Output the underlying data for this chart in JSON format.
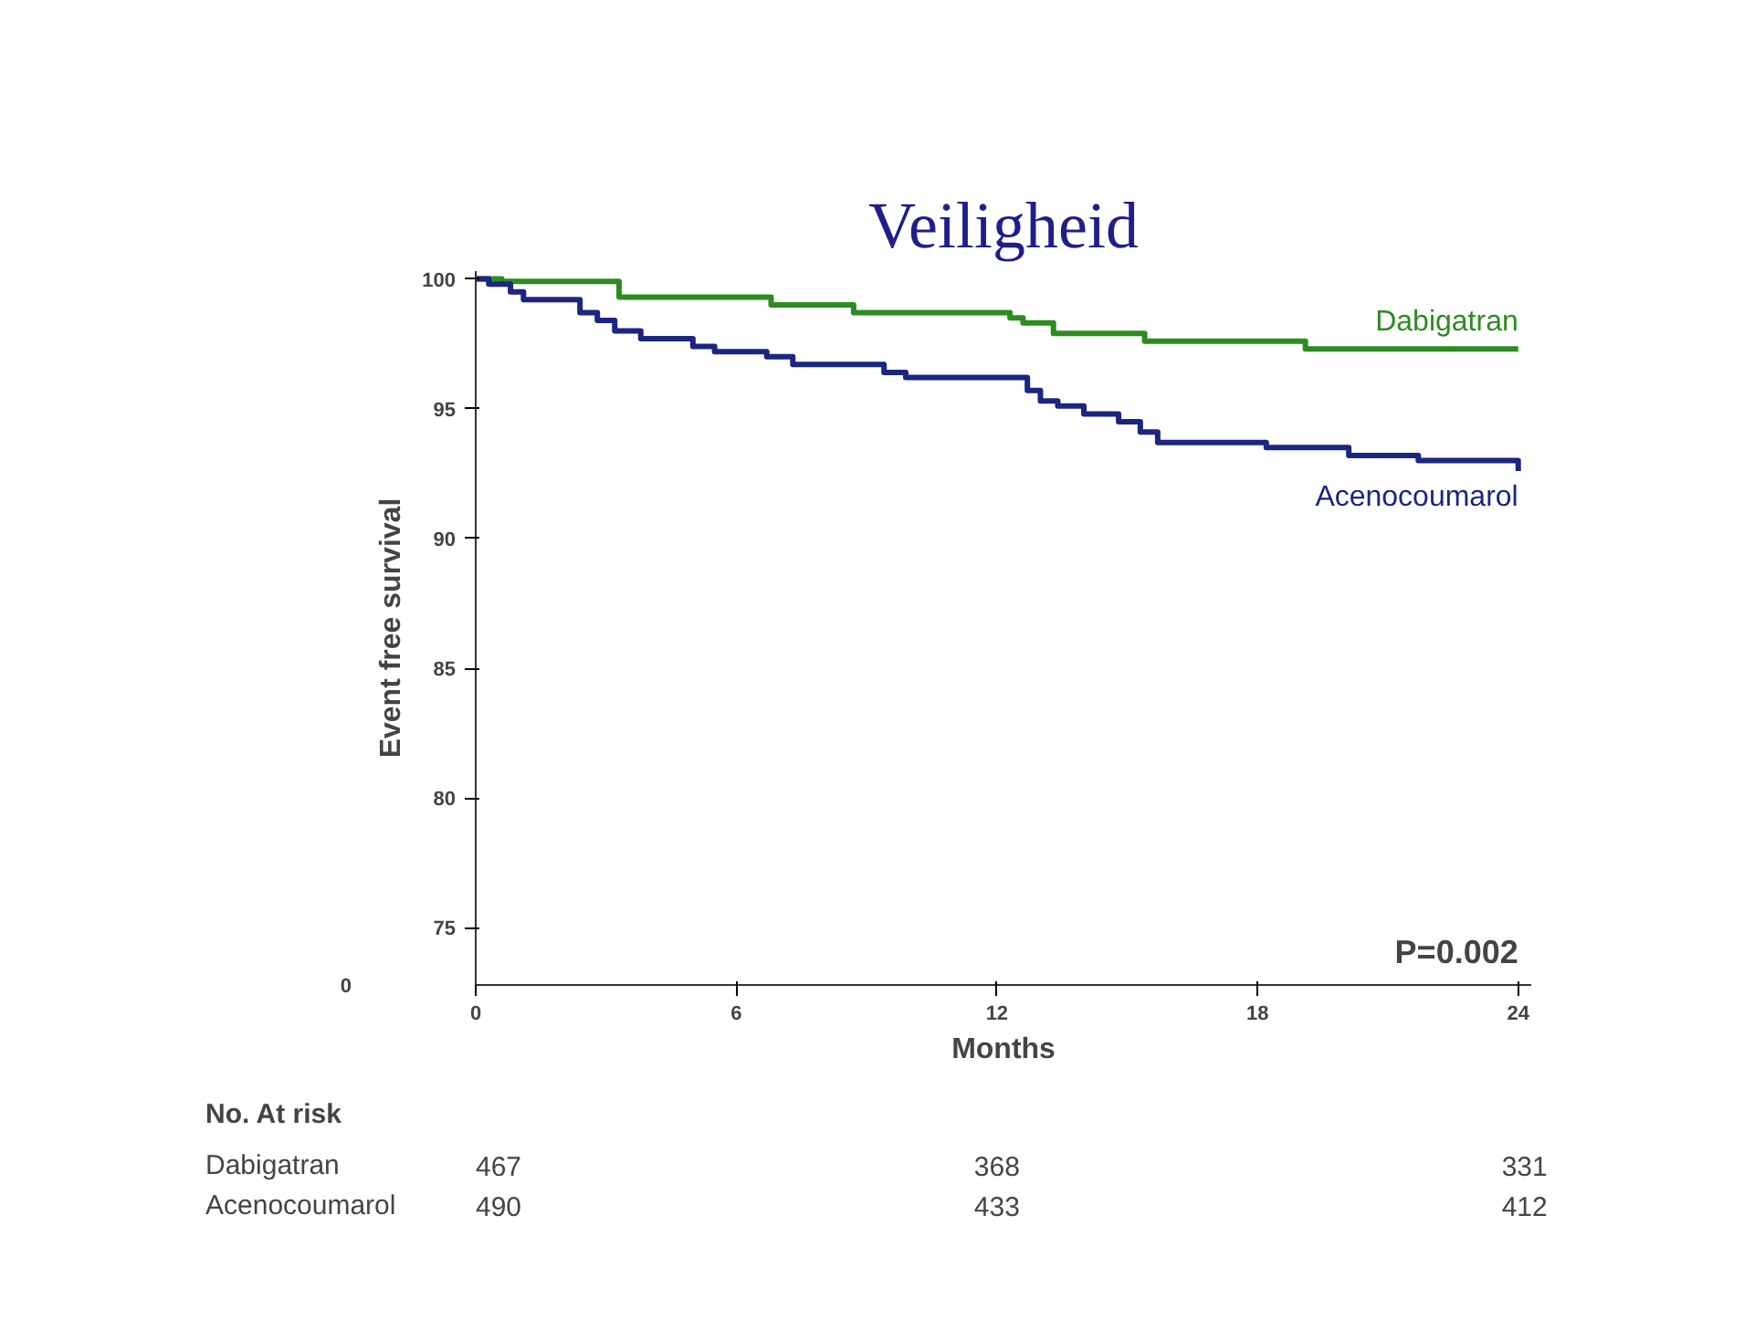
{
  "chart_data": {
    "type": "step",
    "title": "Veiligheid",
    "xlabel": "Months",
    "ylabel": "Event free survival",
    "xlim": [
      0,
      24.3
    ],
    "xticks": [
      0,
      6,
      12,
      18,
      24
    ],
    "ylim": [
      72.8,
      100.3
    ],
    "yticks": [
      75,
      80,
      85,
      90,
      95,
      100
    ],
    "x": [
      0,
      0.6,
      3.3,
      6.8,
      8.7,
      12.3,
      12.6,
      13.3,
      15.4,
      19.1,
      24
    ],
    "series": [
      {
        "name": "Dabigatran",
        "color": "#2e8b22",
        "values": [
          100,
          99.9,
          99.3,
          99.0,
          98.7,
          98.5,
          98.3,
          97.9,
          97.6,
          97.3,
          97.3
        ]
      },
      {
        "name": "Acenocoumarol",
        "color": "#1c2580",
        "x": [
          0,
          0.3,
          0.8,
          1.1,
          2.4,
          2.8,
          3.2,
          3.8,
          5.0,
          5.5,
          6.7,
          7.3,
          9.4,
          9.9,
          12.7,
          13.0,
          13.4,
          14.0,
          14.8,
          15.3,
          15.7,
          18.2,
          20.1,
          21.7,
          24
        ],
        "values": [
          100,
          99.8,
          99.5,
          99.2,
          98.7,
          98.4,
          98.0,
          97.7,
          97.4,
          97.2,
          97.0,
          96.7,
          96.4,
          96.2,
          95.7,
          95.3,
          95.1,
          94.8,
          94.5,
          94.1,
          93.7,
          93.5,
          93.2,
          93.0,
          92.6
        ]
      }
    ],
    "grid": false,
    "annotations": [
      "P=0.002",
      "0",
      "No. At risk",
      "Dabigatran",
      "467",
      "368",
      "331",
      "Acenocoumarol",
      "490",
      "433",
      "412"
    ]
  }
}
